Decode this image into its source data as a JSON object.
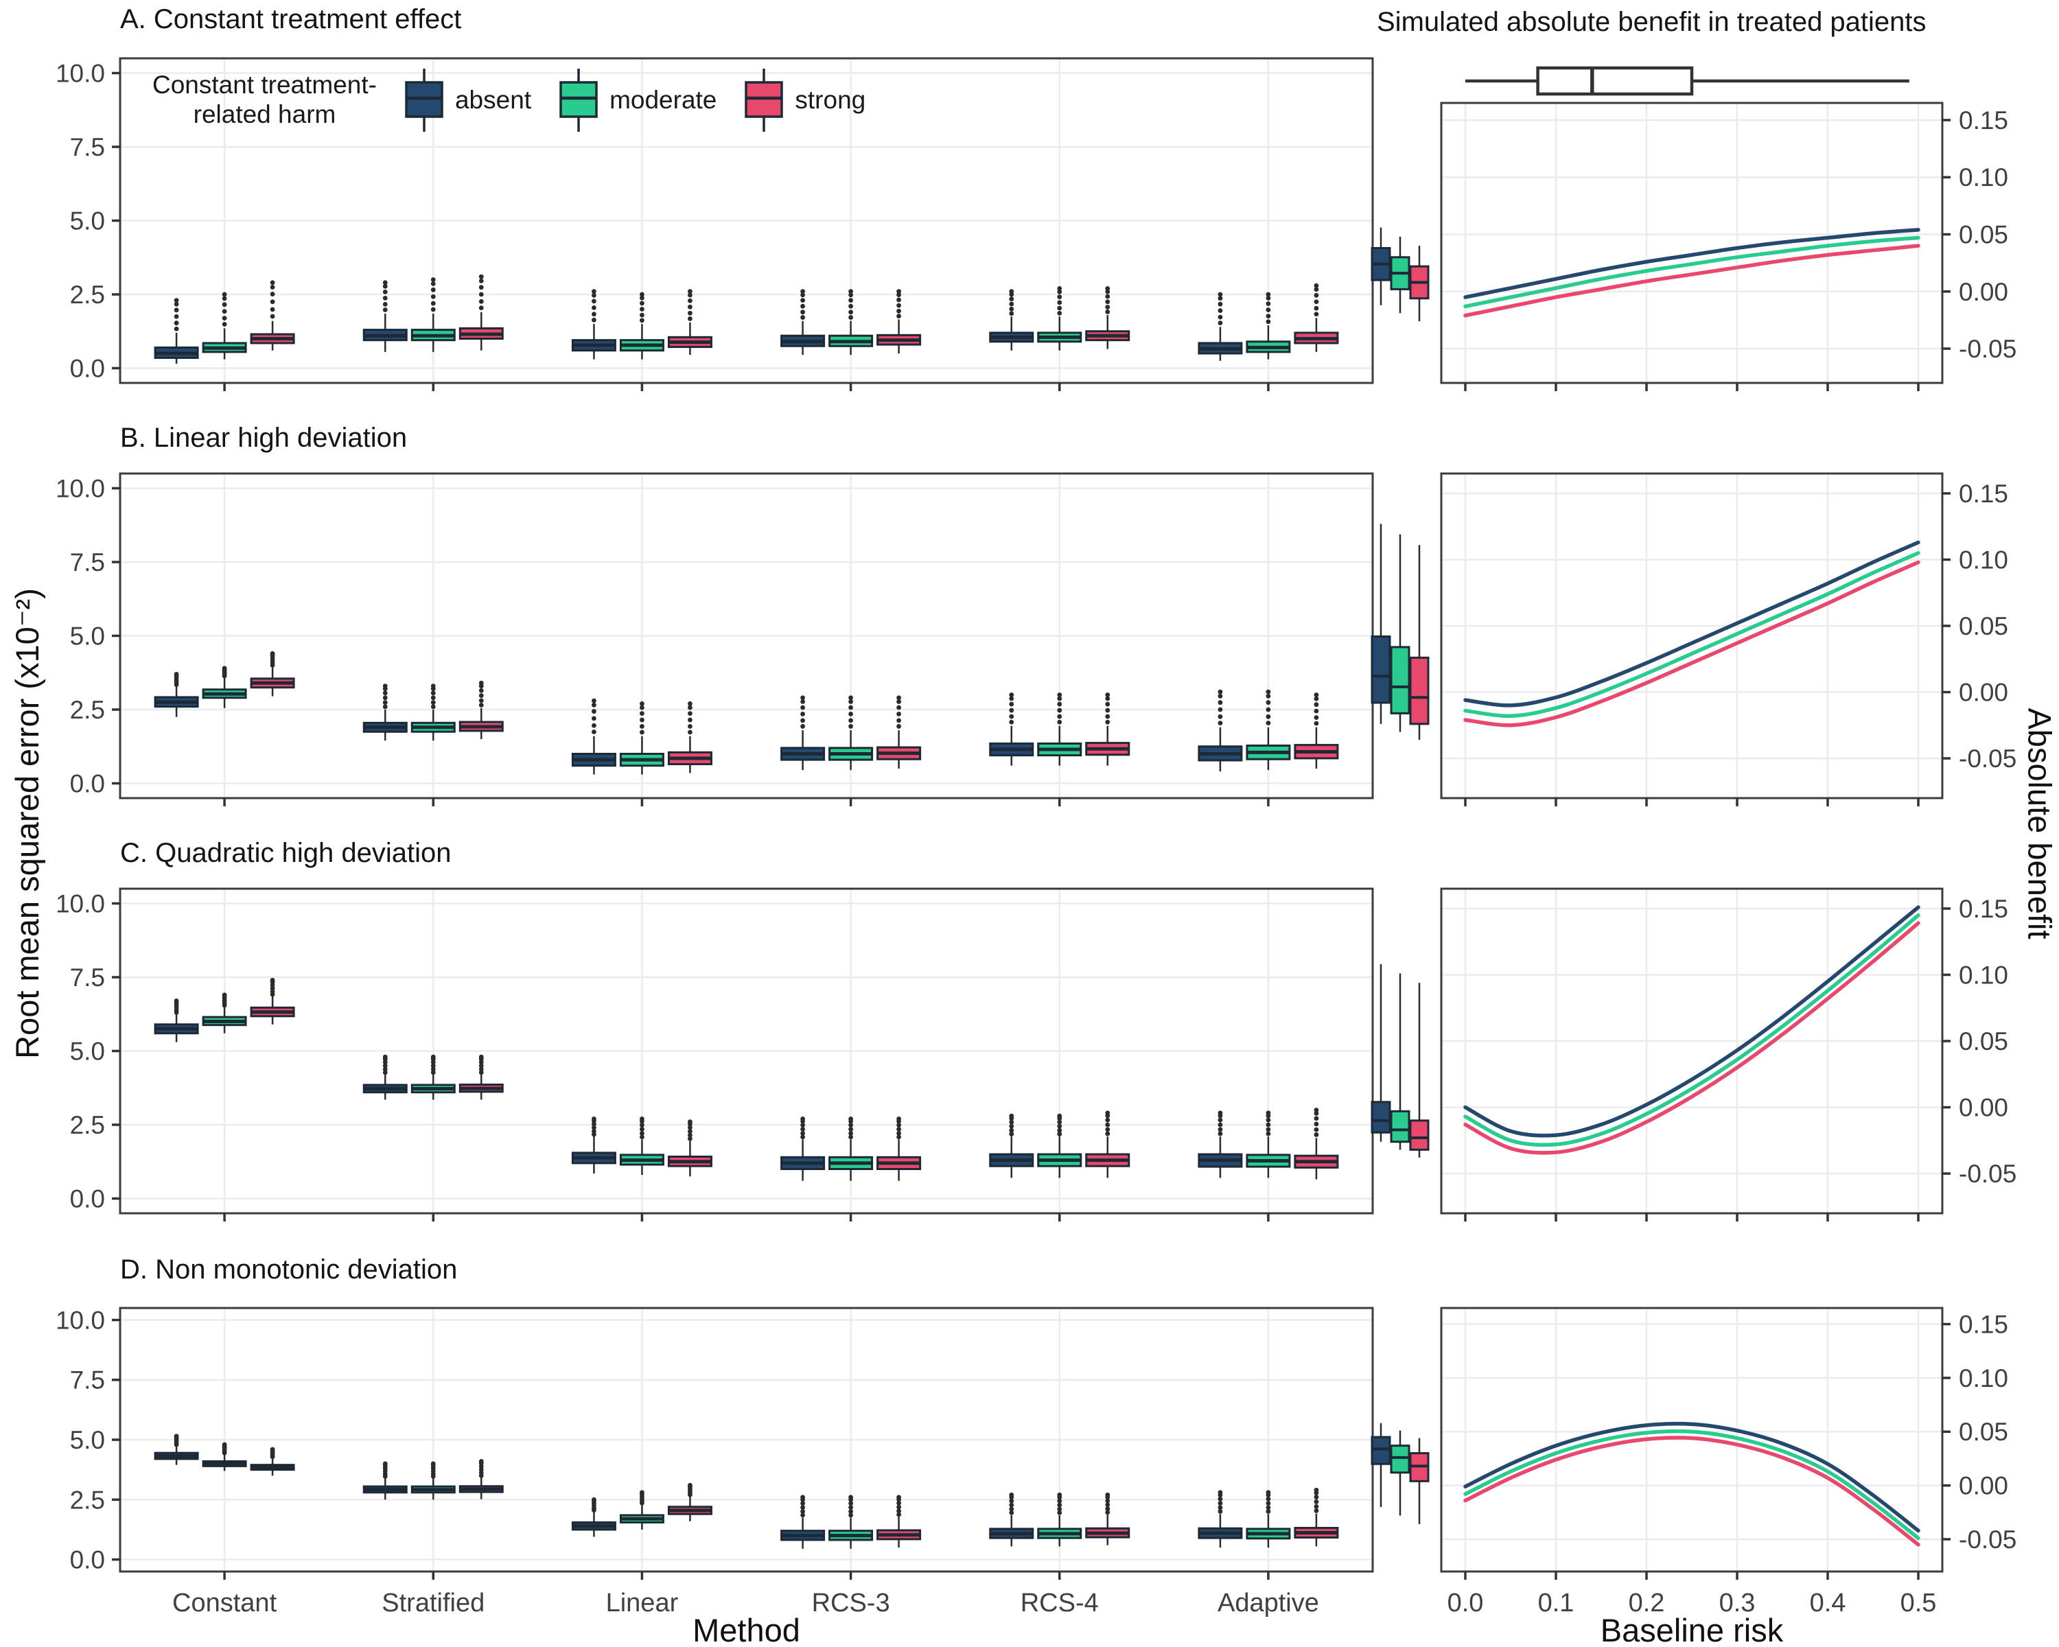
{
  "labels": {
    "left_y": "Root mean squared error (x10⁻²)",
    "right_y": "Absolute benefit",
    "x_left": "Method",
    "x_right": "Baseline risk",
    "right_title": "Simulated absolute benefit in treated patients"
  },
  "legend": {
    "title_line1": "Constant treatment-",
    "title_line2": "related harm",
    "items": [
      {
        "label": "absent",
        "color": "#25496e"
      },
      {
        "label": "moderate",
        "color": "#29cc8e"
      },
      {
        "label": "strong",
        "color": "#e8486c"
      }
    ]
  },
  "axes": {
    "harm_order": [
      "absent",
      "moderate",
      "strong"
    ],
    "methods": [
      "Constant",
      "Stratified",
      "Linear",
      "RCS-3",
      "RCS-4",
      "Adaptive"
    ],
    "left_y_ticks": [
      {
        "v": 0,
        "label": "0.0"
      },
      {
        "v": 2.5,
        "label": "2.5"
      },
      {
        "v": 5,
        "label": "5.0"
      },
      {
        "v": 7.5,
        "label": "7.5"
      },
      {
        "v": 10,
        "label": "10.0"
      }
    ],
    "right_y_ticks": [
      {
        "v": -0.05,
        "label": "-0.05"
      },
      {
        "v": 0,
        "label": "0.00"
      },
      {
        "v": 0.05,
        "label": "0.05"
      },
      {
        "v": 0.1,
        "label": "0.10"
      },
      {
        "v": 0.15,
        "label": "0.15"
      }
    ],
    "baseline_ticks": [
      {
        "v": 0,
        "label": "0.0"
      },
      {
        "v": 0.1,
        "label": "0.1"
      },
      {
        "v": 0.2,
        "label": "0.2"
      },
      {
        "v": 0.3,
        "label": "0.3"
      },
      {
        "v": 0.4,
        "label": "0.4"
      },
      {
        "v": 0.5,
        "label": "0.5"
      }
    ],
    "left_ylim": [
      0,
      10
    ],
    "right_ylim": [
      -0.05,
      0.15
    ],
    "baseline_range": [
      0,
      0.5
    ]
  },
  "chart_data": [
    {
      "id": "A",
      "title": "A. Constant treatment effect",
      "type": "box+line",
      "rmse_boxes": {
        "Constant": {
          "absent": [
            0.15,
            0.35,
            0.5,
            0.7,
            1.2,
            2.3
          ],
          "moderate": [
            0.3,
            0.55,
            0.68,
            0.85,
            1.35,
            2.5
          ],
          "strong": [
            0.6,
            0.85,
            1.0,
            1.15,
            1.6,
            2.9
          ]
        },
        "Stratified": {
          "absent": [
            0.55,
            0.95,
            1.1,
            1.3,
            1.85,
            2.9
          ],
          "moderate": [
            0.55,
            0.95,
            1.1,
            1.3,
            1.85,
            3.0
          ],
          "strong": [
            0.6,
            1.0,
            1.15,
            1.35,
            1.9,
            3.1
          ]
        },
        "Linear": {
          "absent": [
            0.3,
            0.6,
            0.78,
            0.95,
            1.5,
            2.6
          ],
          "moderate": [
            0.3,
            0.6,
            0.78,
            0.95,
            1.5,
            2.5
          ],
          "strong": [
            0.45,
            0.72,
            0.88,
            1.05,
            1.55,
            2.6
          ]
        },
        "RCS-3": {
          "absent": [
            0.45,
            0.75,
            0.9,
            1.1,
            1.6,
            2.6
          ],
          "moderate": [
            0.45,
            0.75,
            0.9,
            1.1,
            1.6,
            2.6
          ],
          "strong": [
            0.5,
            0.8,
            0.95,
            1.12,
            1.65,
            2.6
          ]
        },
        "RCS-4": {
          "absent": [
            0.6,
            0.9,
            1.05,
            1.2,
            1.75,
            2.6
          ],
          "moderate": [
            0.6,
            0.9,
            1.05,
            1.2,
            1.75,
            2.7
          ],
          "strong": [
            0.65,
            0.95,
            1.1,
            1.25,
            1.8,
            2.7
          ]
        },
        "Adaptive": {
          "absent": [
            0.25,
            0.5,
            0.65,
            0.85,
            1.4,
            2.5
          ],
          "moderate": [
            0.3,
            0.55,
            0.7,
            0.9,
            1.45,
            2.5
          ],
          "strong": [
            0.55,
            0.85,
            1.0,
            1.2,
            1.7,
            2.8
          ]
        }
      },
      "benefit_curves": {
        "x": [
          0,
          0.05,
          0.1,
          0.15,
          0.2,
          0.25,
          0.3,
          0.35,
          0.4,
          0.45,
          0.5
        ],
        "absent": [
          -0.005,
          0.003,
          0.011,
          0.019,
          0.026,
          0.032,
          0.038,
          0.043,
          0.047,
          0.051,
          0.054
        ],
        "moderate": [
          -0.013,
          -0.005,
          0.003,
          0.011,
          0.018,
          0.024,
          0.03,
          0.035,
          0.04,
          0.044,
          0.047
        ],
        "strong": [
          -0.021,
          -0.013,
          -0.005,
          0.002,
          0.009,
          0.015,
          0.021,
          0.027,
          0.032,
          0.036,
          0.04
        ]
      },
      "benefit_margin_boxes": {
        "absent": [
          -0.012,
          0.01,
          0.024,
          0.038,
          0.056
        ],
        "moderate": [
          -0.019,
          0.002,
          0.016,
          0.03,
          0.048
        ],
        "strong": [
          -0.026,
          -0.006,
          0.008,
          0.022,
          0.04
        ]
      },
      "baseline_risk_box": {
        "min": 0.0,
        "q1": 0.08,
        "med": 0.14,
        "q3": 0.25,
        "max": 0.49
      }
    },
    {
      "id": "B",
      "title": "B. Linear high deviation",
      "type": "box+line",
      "rmse_boxes": {
        "Constant": {
          "absent": [
            2.25,
            2.6,
            2.75,
            2.92,
            3.3,
            3.7
          ],
          "moderate": [
            2.55,
            2.9,
            3.03,
            3.18,
            3.6,
            3.9
          ],
          "strong": [
            2.95,
            3.25,
            3.4,
            3.55,
            3.95,
            4.4
          ]
        },
        "Stratified": {
          "absent": [
            1.45,
            1.75,
            1.9,
            2.05,
            2.5,
            3.3
          ],
          "moderate": [
            1.45,
            1.75,
            1.9,
            2.05,
            2.5,
            3.3
          ],
          "strong": [
            1.5,
            1.78,
            1.92,
            2.08,
            2.55,
            3.4
          ]
        },
        "Linear": {
          "absent": [
            0.3,
            0.6,
            0.8,
            1.0,
            1.6,
            2.8
          ],
          "moderate": [
            0.3,
            0.6,
            0.8,
            1.0,
            1.6,
            2.7
          ],
          "strong": [
            0.35,
            0.65,
            0.85,
            1.05,
            1.6,
            2.7
          ]
        },
        "RCS-3": {
          "absent": [
            0.45,
            0.8,
            1.0,
            1.2,
            1.8,
            2.9
          ],
          "moderate": [
            0.45,
            0.8,
            1.0,
            1.2,
            1.8,
            2.9
          ],
          "strong": [
            0.5,
            0.82,
            1.02,
            1.22,
            1.8,
            2.9
          ]
        },
        "RCS-4": {
          "absent": [
            0.6,
            0.95,
            1.15,
            1.35,
            1.95,
            3.0
          ],
          "moderate": [
            0.6,
            0.95,
            1.15,
            1.35,
            1.95,
            3.0
          ],
          "strong": [
            0.6,
            0.97,
            1.17,
            1.37,
            1.95,
            3.0
          ]
        },
        "Adaptive": {
          "absent": [
            0.4,
            0.78,
            1.0,
            1.25,
            1.9,
            3.1
          ],
          "moderate": [
            0.45,
            0.82,
            1.05,
            1.28,
            1.9,
            3.1
          ],
          "strong": [
            0.5,
            0.85,
            1.07,
            1.3,
            1.9,
            3.0
          ]
        }
      },
      "benefit_curves": {
        "x": [
          0,
          0.05,
          0.1,
          0.15,
          0.2,
          0.25,
          0.3,
          0.35,
          0.4,
          0.45,
          0.5
        ],
        "absent": [
          -0.006,
          -0.01,
          -0.004,
          0.008,
          0.022,
          0.037,
          0.052,
          0.067,
          0.082,
          0.098,
          0.113
        ],
        "moderate": [
          -0.014,
          -0.018,
          -0.012,
          0.0,
          0.014,
          0.029,
          0.044,
          0.059,
          0.074,
          0.09,
          0.105
        ],
        "strong": [
          -0.021,
          -0.025,
          -0.019,
          -0.007,
          0.007,
          0.022,
          0.037,
          0.052,
          0.067,
          0.083,
          0.098
        ]
      },
      "benefit_margin_boxes": {
        "absent": [
          -0.024,
          -0.008,
          0.012,
          0.042,
          0.127
        ],
        "moderate": [
          -0.03,
          -0.016,
          0.004,
          0.034,
          0.119
        ],
        "strong": [
          -0.036,
          -0.024,
          -0.004,
          0.026,
          0.111
        ]
      }
    },
    {
      "id": "C",
      "title": "C. Quadratic high deviation",
      "type": "box+line",
      "rmse_boxes": {
        "Constant": {
          "absent": [
            5.3,
            5.6,
            5.75,
            5.9,
            6.25,
            6.7
          ],
          "moderate": [
            5.6,
            5.88,
            6.0,
            6.15,
            6.5,
            6.9
          ],
          "strong": [
            5.9,
            6.18,
            6.32,
            6.47,
            6.85,
            7.4
          ]
        },
        "Stratified": {
          "absent": [
            3.35,
            3.6,
            3.72,
            3.85,
            4.2,
            4.8
          ],
          "moderate": [
            3.35,
            3.6,
            3.72,
            3.85,
            4.2,
            4.8
          ],
          "strong": [
            3.35,
            3.62,
            3.73,
            3.86,
            4.2,
            4.8
          ]
        },
        "Linear": {
          "absent": [
            0.85,
            1.2,
            1.38,
            1.55,
            2.1,
            2.7
          ],
          "moderate": [
            0.8,
            1.15,
            1.3,
            1.48,
            2.0,
            2.7
          ],
          "strong": [
            0.75,
            1.1,
            1.25,
            1.42,
            1.95,
            2.6
          ]
        },
        "RCS-3": {
          "absent": [
            0.6,
            1.0,
            1.2,
            1.4,
            2.0,
            2.7
          ],
          "moderate": [
            0.6,
            1.0,
            1.2,
            1.4,
            2.0,
            2.7
          ],
          "strong": [
            0.6,
            1.0,
            1.2,
            1.4,
            2.0,
            2.7
          ]
        },
        "RCS-4": {
          "absent": [
            0.7,
            1.1,
            1.3,
            1.5,
            2.1,
            2.8
          ],
          "moderate": [
            0.7,
            1.1,
            1.3,
            1.5,
            2.1,
            2.8
          ],
          "strong": [
            0.7,
            1.1,
            1.3,
            1.5,
            2.1,
            2.9
          ]
        },
        "Adaptive": {
          "absent": [
            0.7,
            1.08,
            1.3,
            1.5,
            2.1,
            2.9
          ],
          "moderate": [
            0.7,
            1.08,
            1.28,
            1.48,
            2.1,
            2.9
          ],
          "strong": [
            0.65,
            1.05,
            1.25,
            1.45,
            2.05,
            3.0
          ]
        }
      },
      "benefit_curves": {
        "x": [
          0,
          0.05,
          0.1,
          0.15,
          0.2,
          0.25,
          0.3,
          0.35,
          0.4,
          0.45,
          0.5
        ],
        "absent": [
          0.0,
          -0.018,
          -0.021,
          -0.013,
          0.002,
          0.021,
          0.043,
          0.068,
          0.095,
          0.123,
          0.151
        ],
        "moderate": [
          -0.007,
          -0.025,
          -0.028,
          -0.02,
          -0.005,
          0.014,
          0.036,
          0.061,
          0.088,
          0.116,
          0.145
        ],
        "strong": [
          -0.013,
          -0.031,
          -0.034,
          -0.026,
          -0.011,
          0.008,
          0.03,
          0.055,
          0.082,
          0.11,
          0.139
        ]
      },
      "benefit_margin_boxes": {
        "absent": [
          -0.026,
          -0.019,
          -0.01,
          0.004,
          0.108
        ],
        "moderate": [
          -0.032,
          -0.026,
          -0.017,
          -0.003,
          0.101
        ],
        "strong": [
          -0.038,
          -0.032,
          -0.023,
          -0.01,
          0.094
        ]
      }
    },
    {
      "id": "D",
      "title": "D. Non monotonic deviation",
      "type": "box+line",
      "rmse_boxes": {
        "Constant": {
          "absent": [
            3.95,
            4.2,
            4.32,
            4.45,
            4.75,
            5.15
          ],
          "moderate": [
            3.7,
            3.9,
            4.0,
            4.1,
            4.4,
            4.8
          ],
          "strong": [
            3.5,
            3.75,
            3.85,
            3.95,
            4.25,
            4.6
          ]
        },
        "Stratified": {
          "absent": [
            2.5,
            2.8,
            2.92,
            3.05,
            3.4,
            4.0
          ],
          "moderate": [
            2.5,
            2.8,
            2.92,
            3.05,
            3.4,
            4.0
          ],
          "strong": [
            2.52,
            2.82,
            2.94,
            3.06,
            3.42,
            4.1
          ]
        },
        "Linear": {
          "absent": [
            0.95,
            1.25,
            1.4,
            1.55,
            2.0,
            2.5
          ],
          "moderate": [
            1.25,
            1.55,
            1.7,
            1.85,
            2.3,
            2.8
          ],
          "strong": [
            1.6,
            1.9,
            2.05,
            2.2,
            2.65,
            3.1
          ]
        },
        "RCS-3": {
          "absent": [
            0.45,
            0.82,
            1.0,
            1.2,
            1.75,
            2.6
          ],
          "moderate": [
            0.45,
            0.82,
            1.0,
            1.2,
            1.75,
            2.6
          ],
          "strong": [
            0.5,
            0.85,
            1.03,
            1.22,
            1.78,
            2.6
          ]
        },
        "RCS-4": {
          "absent": [
            0.55,
            0.9,
            1.08,
            1.28,
            1.85,
            2.7
          ],
          "moderate": [
            0.55,
            0.9,
            1.08,
            1.28,
            1.85,
            2.7
          ],
          "strong": [
            0.6,
            0.93,
            1.1,
            1.3,
            1.87,
            2.7
          ]
        },
        "Adaptive": {
          "absent": [
            0.5,
            0.9,
            1.1,
            1.3,
            1.9,
            2.8
          ],
          "moderate": [
            0.5,
            0.88,
            1.08,
            1.28,
            1.9,
            2.8
          ],
          "strong": [
            0.55,
            0.92,
            1.12,
            1.32,
            1.92,
            2.9
          ]
        }
      },
      "benefit_curves": {
        "x": [
          0,
          0.05,
          0.1,
          0.15,
          0.2,
          0.25,
          0.3,
          0.35,
          0.4,
          0.45,
          0.5
        ],
        "absent": [
          -0.001,
          0.02,
          0.037,
          0.049,
          0.056,
          0.057,
          0.051,
          0.039,
          0.02,
          -0.009,
          -0.042
        ],
        "moderate": [
          -0.008,
          0.013,
          0.03,
          0.042,
          0.049,
          0.05,
          0.044,
          0.032,
          0.013,
          -0.016,
          -0.049
        ],
        "strong": [
          -0.014,
          0.007,
          0.024,
          0.036,
          0.043,
          0.044,
          0.038,
          0.026,
          0.007,
          -0.022,
          -0.055
        ]
      },
      "benefit_margin_boxes": {
        "absent": [
          -0.02,
          0.02,
          0.034,
          0.045,
          0.058
        ],
        "moderate": [
          -0.028,
          0.012,
          0.026,
          0.037,
          0.051
        ],
        "strong": [
          -0.036,
          0.004,
          0.018,
          0.03,
          0.044
        ]
      }
    }
  ]
}
